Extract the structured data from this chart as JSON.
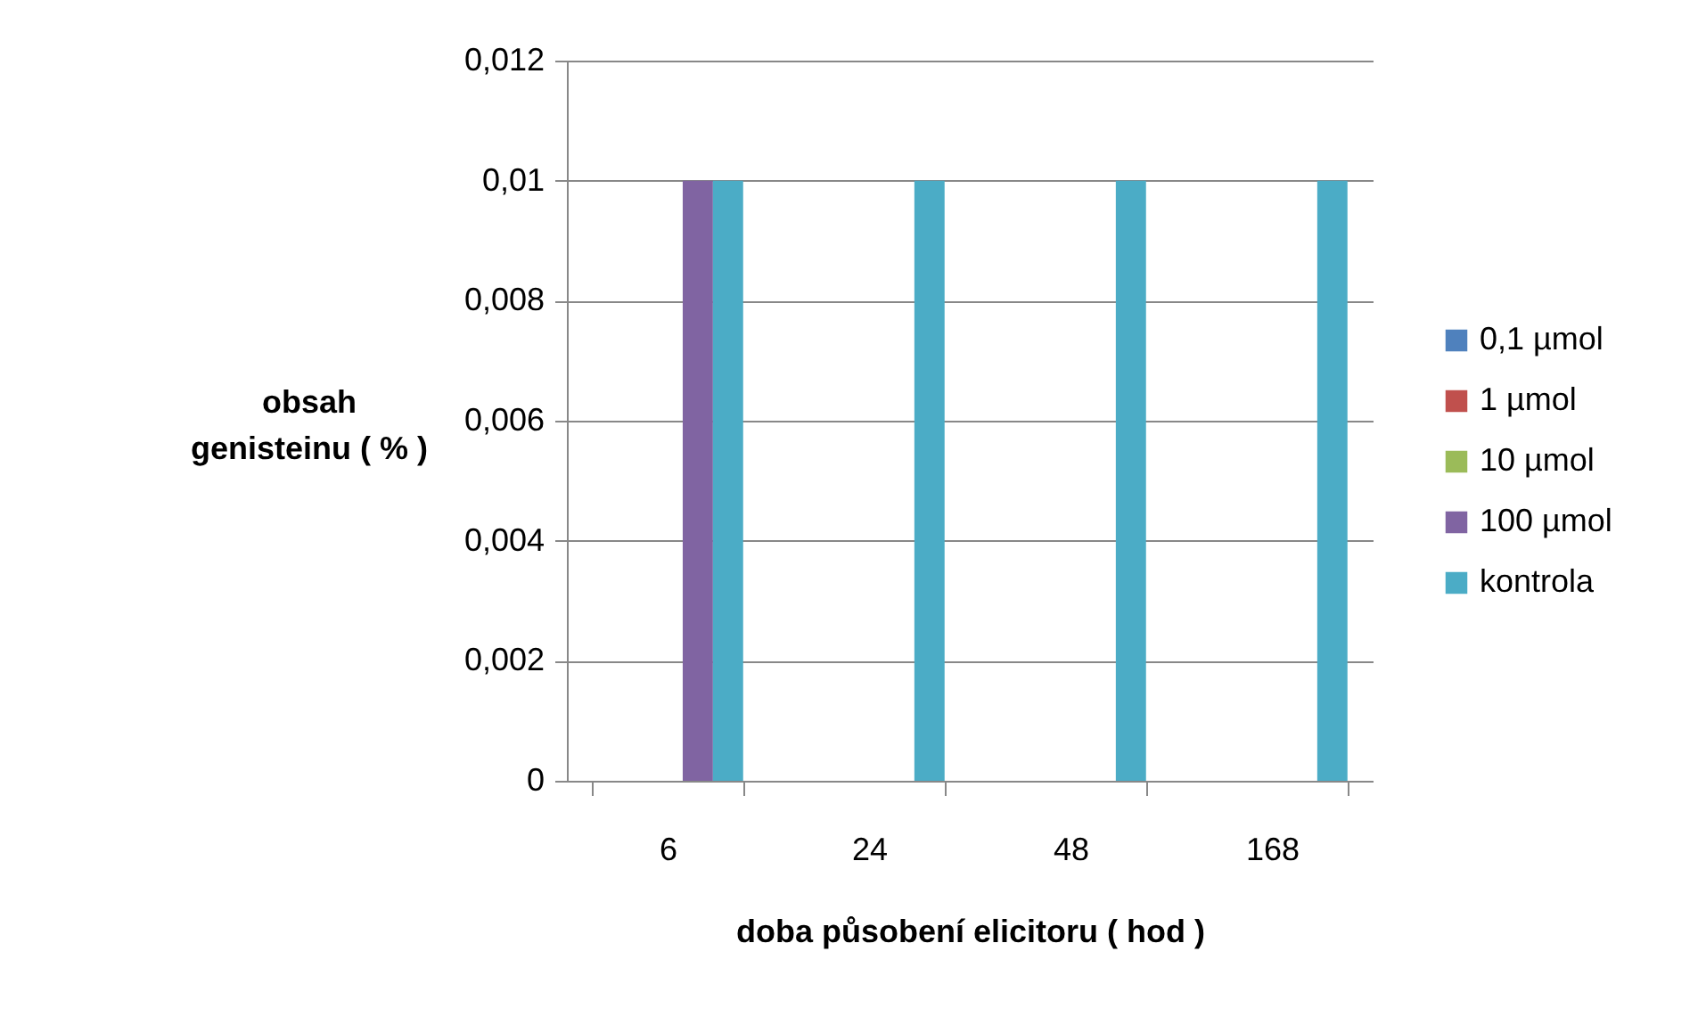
{
  "chart_data": {
    "type": "bar",
    "xlabel": "doba působení elicitoru ( hod )",
    "ylabel": "obsah\ngenisteinu ( % )",
    "categories": [
      "6",
      "24",
      "48",
      "168"
    ],
    "series": [
      {
        "name": "0,1 µmol",
        "color": "#4f81bd",
        "values": [
          0,
          0,
          0,
          0
        ]
      },
      {
        "name": "1 µmol",
        "color": "#c0504d",
        "values": [
          0,
          0,
          0,
          0
        ]
      },
      {
        "name": "10 µmol",
        "color": "#9bbb59",
        "values": [
          0,
          0,
          0,
          0
        ]
      },
      {
        "name": "100 µmol",
        "color": "#8064a2",
        "values": [
          0.01,
          0,
          0,
          0
        ]
      },
      {
        "name": "kontrola",
        "color": "#4bacc6",
        "values": [
          0.01,
          0.01,
          0.01,
          0.01
        ]
      }
    ],
    "ylim": [
      0,
      0.012
    ],
    "yticks": [
      0,
      {
        "value": 0.002,
        "label": "0,002"
      },
      {
        "value": 0.004,
        "label": "0,004"
      },
      {
        "value": 0.006,
        "label": "0,006"
      },
      {
        "value": 0.008,
        "label": "0,008"
      },
      {
        "value": 0.01,
        "label": "0,01"
      },
      {
        "value": 0.012,
        "label": "0,012"
      }
    ],
    "grid": "y",
    "legend": "right"
  }
}
